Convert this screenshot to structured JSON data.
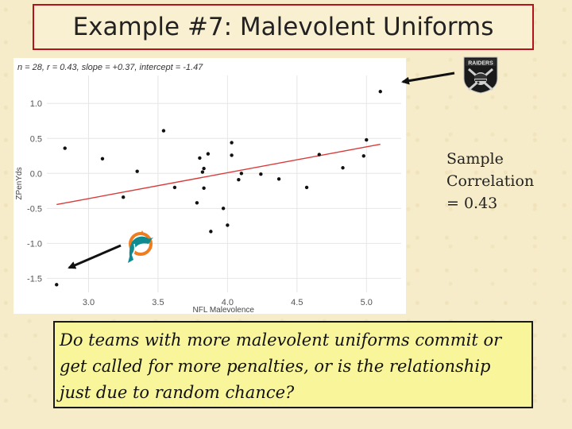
{
  "slide": {
    "title": "Example #7: Malevolent Uniforms",
    "correlation_lines": [
      "Sample",
      "Correlation",
      "=  0.43"
    ],
    "question": "Do teams with more malevolent uniforms commit or get called for more penalties, or is the relationship just due to random chance?"
  },
  "plot": {
    "stats_text": "n = 28, r = 0.43, slope = +0.37, intercept = -1.47"
  },
  "logos": {
    "raiders_text": "RAIDERS",
    "raiders_icon": "raiders-logo-icon",
    "dolphins_icon": "dolphins-logo-icon"
  },
  "colors": {
    "title_border": "#b3141b",
    "regression_line": "#d93a3a",
    "points": "#111111",
    "question_bg": "#f8f59a",
    "grid": "#e6e6e6",
    "arrow": "#111111"
  },
  "chart_data": {
    "type": "scatter",
    "xlabel": "NFL Malevolence",
    "ylabel": "ZPenYds",
    "xlim": [
      2.7,
      5.25
    ],
    "ylim": [
      -1.7,
      1.4
    ],
    "xticks": [
      3.0,
      3.5,
      4.0,
      4.5,
      5.0
    ],
    "yticks": [
      -1.5,
      -1.0,
      -0.5,
      0.0,
      0.5,
      1.0
    ],
    "grid": true,
    "regression": {
      "slope": 0.37,
      "intercept": -1.47
    },
    "points": [
      {
        "x": 2.77,
        "y": -1.59
      },
      {
        "x": 2.83,
        "y": 0.36
      },
      {
        "x": 3.1,
        "y": 0.21
      },
      {
        "x": 3.25,
        "y": -0.34
      },
      {
        "x": 3.35,
        "y": 0.03
      },
      {
        "x": 3.54,
        "y": 0.61
      },
      {
        "x": 3.62,
        "y": -0.2
      },
      {
        "x": 3.78,
        "y": -0.42
      },
      {
        "x": 3.8,
        "y": 0.22
      },
      {
        "x": 3.82,
        "y": 0.02
      },
      {
        "x": 3.83,
        "y": 0.07
      },
      {
        "x": 3.83,
        "y": -0.21
      },
      {
        "x": 3.86,
        "y": 0.28
      },
      {
        "x": 3.88,
        "y": -0.83
      },
      {
        "x": 3.97,
        "y": -0.5
      },
      {
        "x": 4.0,
        "y": -0.74
      },
      {
        "x": 4.03,
        "y": 0.44
      },
      {
        "x": 4.03,
        "y": 0.26
      },
      {
        "x": 4.08,
        "y": -0.09
      },
      {
        "x": 4.1,
        "y": 0.0
      },
      {
        "x": 4.24,
        "y": -0.01
      },
      {
        "x": 4.37,
        "y": -0.08
      },
      {
        "x": 4.57,
        "y": -0.2
      },
      {
        "x": 4.66,
        "y": 0.27
      },
      {
        "x": 4.83,
        "y": 0.08
      },
      {
        "x": 4.98,
        "y": 0.25
      },
      {
        "x": 5.0,
        "y": 0.48
      },
      {
        "x": 5.1,
        "y": 1.17
      }
    ]
  }
}
